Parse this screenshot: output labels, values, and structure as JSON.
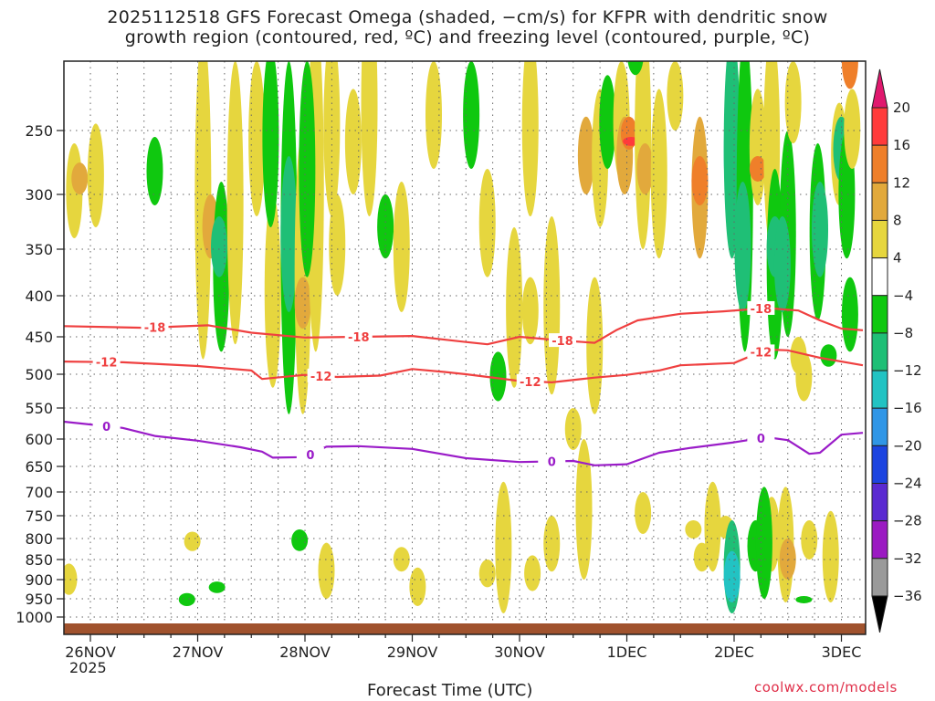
{
  "title_line1": "2025112518 GFS Forecast Omega (shaded, −cm/s) for KFPR with dendritic snow",
  "title_line2": "growth region (contoured, red, ºC) and freezing level (contoured, purple, ºC)",
  "x_axis_label": "Forecast Time (UTC)",
  "year_label": "2025",
  "credit": "coolwx.com/models",
  "chart_data": {
    "type": "heatmap",
    "x_ticks": [
      "26NOV",
      "27NOV",
      "28NOV",
      "29NOV",
      "30NOV",
      "1DEC",
      "2DEC",
      "3DEC"
    ],
    "y_ticks": [
      250,
      300,
      350,
      400,
      450,
      500,
      550,
      600,
      650,
      700,
      750,
      800,
      850,
      900,
      950,
      1000
    ],
    "x_range_days": [
      -0.25,
      7.2
    ],
    "y_range_hpa": [
      200,
      1010
    ],
    "colorbar": {
      "labels": [
        "20",
        "16",
        "12",
        "8",
        "4",
        "−4",
        "−8",
        "−12",
        "−16",
        "−20",
        "−24",
        "−28",
        "−32",
        "−36"
      ],
      "colors": [
        "#ff3b3b",
        "#ef7f2a",
        "#e2a93c",
        "#e6d63e",
        "#ffffff",
        "#0fc80f",
        "#1fbf76",
        "#22c3c3",
        "#3096e6",
        "#1c44e0",
        "#5a2ad1",
        "#9b1ac2",
        "#9a9a9a"
      ],
      "top_arrow_color": "#e0186e",
      "bottom_arrow_color": "#000000"
    },
    "shading_colors": {
      "yellow": "#e6d63e",
      "gold": "#e2a93c",
      "orange": "#ef7f2a",
      "red": "#ff3b3b",
      "green": "#0fc80f",
      "teal": "#1fbf76",
      "cyan": "#22c3c3",
      "blue": "#3096e6"
    },
    "contours": [
      {
        "name": "-18",
        "color": "#ef4040",
        "label": "-18",
        "days": [
          -0.25,
          0.5,
          1.1,
          1.5,
          2.0,
          2.5,
          3.0,
          3.5,
          3.7,
          4.0,
          4.4,
          4.7,
          4.9,
          5.1,
          5.5,
          5.9,
          6.3,
          6.6,
          6.8,
          7.0,
          7.2
        ],
        "hpa": [
          437,
          439,
          436,
          445,
          451,
          450,
          449,
          457,
          460,
          450,
          455,
          458,
          442,
          430,
          422,
          419,
          415,
          418,
          430,
          440,
          442
        ],
        "label_days": [
          0.6,
          2.5,
          4.4,
          6.25
        ]
      },
      {
        "name": "-12",
        "color": "#ef4040",
        "label": "-12",
        "days": [
          -0.25,
          0.3,
          1.0,
          1.5,
          1.6,
          2.0,
          2.3,
          2.7,
          3.0,
          3.3,
          3.5,
          4.0,
          4.3,
          4.7,
          5.0,
          5.3,
          5.5,
          6.0,
          6.3,
          6.5,
          6.8,
          7.2
        ],
        "hpa": [
          483,
          484,
          489,
          495,
          507,
          501,
          504,
          502,
          493,
          497,
          500,
          510,
          512,
          505,
          501,
          495,
          488,
          485,
          467,
          468,
          478,
          488
        ],
        "label_days": [
          0.15,
          2.15,
          4.1,
          6.25
        ]
      },
      {
        "name": "0",
        "color": "#9a1cc8",
        "label": "0",
        "days": [
          -0.25,
          0.3,
          0.6,
          1.0,
          1.4,
          1.6,
          1.7,
          2.0,
          2.2,
          2.5,
          3.0,
          3.5,
          4.0,
          4.5,
          4.7,
          5.0,
          5.3,
          5.6,
          6.0,
          6.3,
          6.5,
          6.7,
          6.8,
          7.0,
          7.2
        ],
        "hpa": [
          572,
          582,
          595,
          603,
          615,
          623,
          634,
          633,
          614,
          613,
          618,
          635,
          642,
          640,
          648,
          646,
          625,
          616,
          606,
          597,
          602,
          627,
          625,
          593,
          590
        ],
        "label_days": [
          0.15,
          2.05,
          4.3,
          6.25
        ]
      }
    ],
    "omega_cells": [
      {
        "d": -0.15,
        "p0": 260,
        "p1": 340,
        "c": "yellow"
      },
      {
        "d": -0.1,
        "p0": 275,
        "p1": 300,
        "c": "gold"
      },
      {
        "d": 0.05,
        "p0": 245,
        "p1": 330,
        "c": "yellow"
      },
      {
        "d": -0.2,
        "p0": 860,
        "p1": 940,
        "c": "yellow"
      },
      {
        "d": 0.6,
        "p0": 255,
        "p1": 310,
        "c": "green"
      },
      {
        "d": 0.95,
        "p0": 785,
        "p1": 830,
        "c": "yellow"
      },
      {
        "d": 0.9,
        "p0": 935,
        "p1": 970,
        "c": "green"
      },
      {
        "d": 1.05,
        "p0": 180,
        "p1": 480,
        "c": "yellow"
      },
      {
        "d": 1.12,
        "p0": 300,
        "p1": 360,
        "c": "gold"
      },
      {
        "d": 1.22,
        "p0": 290,
        "p1": 470,
        "c": "green"
      },
      {
        "d": 1.2,
        "p0": 320,
        "p1": 380,
        "c": "teal"
      },
      {
        "d": 1.35,
        "p0": 200,
        "p1": 460,
        "c": "yellow"
      },
      {
        "d": 1.18,
        "p0": 905,
        "p1": 935,
        "c": "green"
      },
      {
        "d": 1.55,
        "p0": 200,
        "p1": 320,
        "c": "yellow"
      },
      {
        "d": 1.7,
        "p0": 300,
        "p1": 520,
        "c": "yellow"
      },
      {
        "d": 1.68,
        "p0": 190,
        "p1": 330,
        "c": "green"
      },
      {
        "d": 1.85,
        "p0": 200,
        "p1": 560,
        "c": "green"
      },
      {
        "d": 1.85,
        "p0": 270,
        "p1": 420,
        "c": "teal"
      },
      {
        "d": 1.98,
        "p0": 250,
        "p1": 560,
        "c": "yellow"
      },
      {
        "d": 1.98,
        "p0": 380,
        "p1": 440,
        "c": "gold"
      },
      {
        "d": 2.1,
        "p0": 170,
        "p1": 470,
        "c": "yellow"
      },
      {
        "d": 2.25,
        "p0": 180,
        "p1": 320,
        "c": "yellow"
      },
      {
        "d": 2.3,
        "p0": 300,
        "p1": 400,
        "c": "yellow"
      },
      {
        "d": 2.02,
        "p0": 200,
        "p1": 380,
        "c": "green"
      },
      {
        "d": 2.45,
        "p0": 220,
        "p1": 300,
        "c": "yellow"
      },
      {
        "d": 2.6,
        "p0": 150,
        "p1": 320,
        "c": "yellow"
      },
      {
        "d": 2.75,
        "p0": 300,
        "p1": 360,
        "c": "green"
      },
      {
        "d": 2.9,
        "p0": 290,
        "p1": 420,
        "c": "yellow"
      },
      {
        "d": 1.95,
        "p0": 780,
        "p1": 830,
        "c": "green"
      },
      {
        "d": 2.2,
        "p0": 810,
        "p1": 950,
        "c": "yellow"
      },
      {
        "d": 2.9,
        "p0": 820,
        "p1": 880,
        "c": "yellow"
      },
      {
        "d": 3.05,
        "p0": 870,
        "p1": 970,
        "c": "yellow"
      },
      {
        "d": 3.2,
        "p0": 200,
        "p1": 280,
        "c": "yellow"
      },
      {
        "d": 3.55,
        "p0": 200,
        "p1": 280,
        "c": "green"
      },
      {
        "d": 3.7,
        "p0": 280,
        "p1": 380,
        "c": "yellow"
      },
      {
        "d": 3.8,
        "p0": 470,
        "p1": 540,
        "c": "green"
      },
      {
        "d": 3.85,
        "p0": 680,
        "p1": 990,
        "c": "yellow"
      },
      {
        "d": 3.7,
        "p0": 850,
        "p1": 920,
        "c": "yellow"
      },
      {
        "d": 3.95,
        "p0": 330,
        "p1": 520,
        "c": "yellow"
      },
      {
        "d": 4.1,
        "p0": 180,
        "p1": 320,
        "c": "yellow"
      },
      {
        "d": 4.1,
        "p0": 380,
        "p1": 460,
        "c": "yellow"
      },
      {
        "d": 4.12,
        "p0": 840,
        "p1": 930,
        "c": "yellow"
      },
      {
        "d": 4.3,
        "p0": 320,
        "p1": 530,
        "c": "yellow"
      },
      {
        "d": 4.3,
        "p0": 750,
        "p1": 880,
        "c": "yellow"
      },
      {
        "d": 4.5,
        "p0": 550,
        "p1": 620,
        "c": "yellow"
      },
      {
        "d": 4.62,
        "p0": 240,
        "p1": 300,
        "c": "gold"
      },
      {
        "d": 4.7,
        "p0": 380,
        "p1": 560,
        "c": "yellow"
      },
      {
        "d": 4.6,
        "p0": 600,
        "p1": 900,
        "c": "yellow"
      },
      {
        "d": 4.75,
        "p0": 220,
        "p1": 330,
        "c": "yellow"
      },
      {
        "d": 4.82,
        "p0": 210,
        "p1": 280,
        "c": "green"
      },
      {
        "d": 4.95,
        "p0": 200,
        "p1": 290,
        "c": "yellow"
      },
      {
        "d": 4.98,
        "p0": 240,
        "p1": 300,
        "c": "gold"
      },
      {
        "d": 5.02,
        "p0": 240,
        "p1": 265,
        "c": "orange"
      },
      {
        "d": 5.04,
        "p0": 255,
        "p1": 262,
        "c": "red"
      },
      {
        "d": 5.15,
        "p0": 170,
        "p1": 350,
        "c": "yellow"
      },
      {
        "d": 5.17,
        "p0": 260,
        "p1": 300,
        "c": "gold"
      },
      {
        "d": 5.08,
        "p0": 180,
        "p1": 210,
        "c": "green"
      },
      {
        "d": 5.3,
        "p0": 220,
        "p1": 360,
        "c": "yellow"
      },
      {
        "d": 5.45,
        "p0": 200,
        "p1": 250,
        "c": "yellow"
      },
      {
        "d": 5.15,
        "p0": 700,
        "p1": 790,
        "c": "yellow"
      },
      {
        "d": 5.8,
        "p0": 680,
        "p1": 880,
        "c": "yellow"
      },
      {
        "d": 5.62,
        "p0": 760,
        "p1": 800,
        "c": "yellow"
      },
      {
        "d": 5.7,
        "p0": 810,
        "p1": 880,
        "c": "yellow"
      },
      {
        "d": 5.68,
        "p0": 240,
        "p1": 360,
        "c": "gold"
      },
      {
        "d": 5.68,
        "p0": 270,
        "p1": 310,
        "c": "orange"
      },
      {
        "d": 5.92,
        "p0": 750,
        "p1": 800,
        "c": "yellow"
      },
      {
        "d": 5.98,
        "p0": 220,
        "p1": 320,
        "c": "cyan"
      },
      {
        "d": 5.98,
        "p0": 180,
        "p1": 360,
        "c": "teal"
      },
      {
        "d": 5.98,
        "p0": 760,
        "p1": 990,
        "c": "teal"
      },
      {
        "d": 5.98,
        "p0": 830,
        "p1": 960,
        "c": "cyan"
      },
      {
        "d": 6.1,
        "p0": 180,
        "p1": 470,
        "c": "green"
      },
      {
        "d": 6.08,
        "p0": 290,
        "p1": 420,
        "c": "teal"
      },
      {
        "d": 6.2,
        "p0": 760,
        "p1": 880,
        "c": "green"
      },
      {
        "d": 6.22,
        "p0": 220,
        "p1": 310,
        "c": "yellow"
      },
      {
        "d": 6.22,
        "p0": 270,
        "p1": 290,
        "c": "orange"
      },
      {
        "d": 6.35,
        "p0": 710,
        "p1": 880,
        "c": "yellow"
      },
      {
        "d": 6.28,
        "p0": 690,
        "p1": 950,
        "c": "green"
      },
      {
        "d": 6.35,
        "p0": 180,
        "p1": 350,
        "c": "yellow"
      },
      {
        "d": 6.38,
        "p0": 280,
        "p1": 480,
        "c": "green"
      },
      {
        "d": 6.38,
        "p0": 320,
        "p1": 380,
        "c": "teal"
      },
      {
        "d": 6.5,
        "p0": 250,
        "p1": 450,
        "c": "green"
      },
      {
        "d": 6.45,
        "p0": 320,
        "p1": 420,
        "c": "teal"
      },
      {
        "d": 6.48,
        "p0": 690,
        "p1": 960,
        "c": "yellow"
      },
      {
        "d": 6.5,
        "p0": 800,
        "p1": 900,
        "c": "gold"
      },
      {
        "d": 6.55,
        "p0": 200,
        "p1": 260,
        "c": "yellow"
      },
      {
        "d": 6.6,
        "p0": 450,
        "p1": 500,
        "c": "yellow"
      },
      {
        "d": 6.65,
        "p0": 470,
        "p1": 540,
        "c": "yellow"
      },
      {
        "d": 6.7,
        "p0": 760,
        "p1": 850,
        "c": "yellow"
      },
      {
        "d": 6.65,
        "p0": 945,
        "p1": 960,
        "c": "green"
      },
      {
        "d": 6.78,
        "p0": 260,
        "p1": 430,
        "c": "green"
      },
      {
        "d": 6.8,
        "p0": 290,
        "p1": 380,
        "c": "teal"
      },
      {
        "d": 6.9,
        "p0": 740,
        "p1": 960,
        "c": "yellow"
      },
      {
        "d": 6.88,
        "p0": 460,
        "p1": 490,
        "c": "green"
      },
      {
        "d": 6.98,
        "p0": 230,
        "p1": 310,
        "c": "yellow"
      },
      {
        "d": 7.0,
        "p0": 240,
        "p1": 290,
        "c": "teal"
      },
      {
        "d": 7.05,
        "p0": 250,
        "p1": 360,
        "c": "green"
      },
      {
        "d": 7.1,
        "p0": 220,
        "p1": 280,
        "c": "yellow"
      },
      {
        "d": 7.08,
        "p0": 380,
        "p1": 470,
        "c": "green"
      },
      {
        "d": 7.08,
        "p0": 180,
        "p1": 220,
        "c": "orange"
      }
    ]
  }
}
